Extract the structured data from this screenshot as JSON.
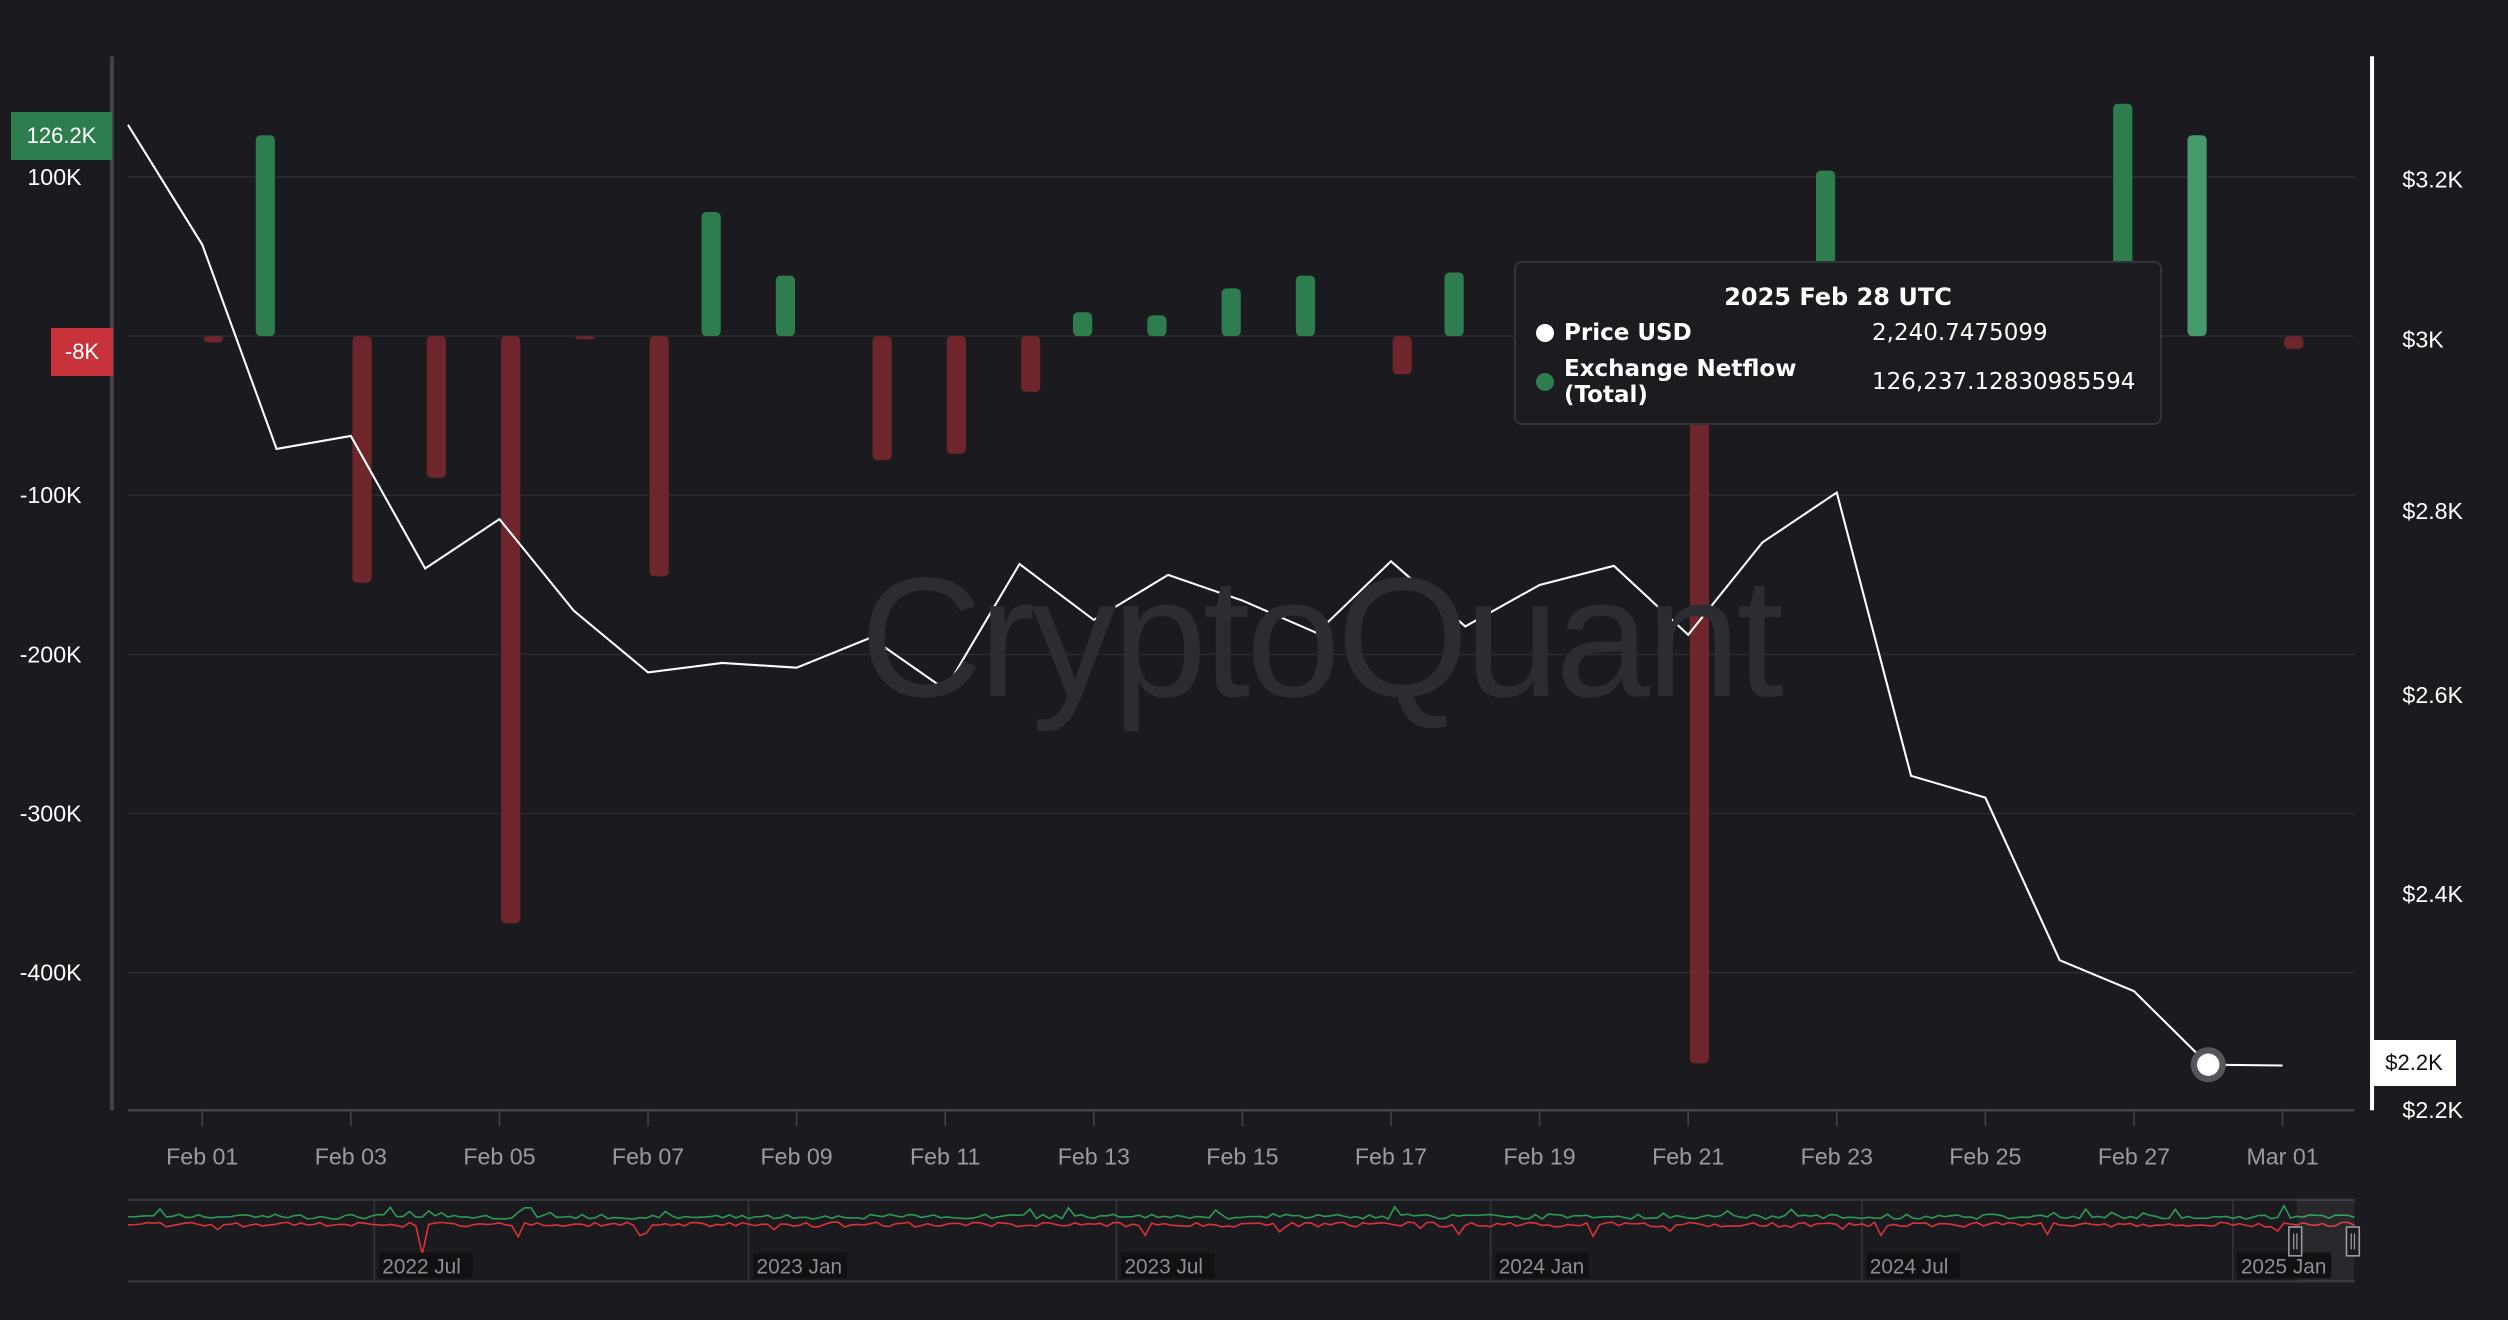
{
  "chart_data": {
    "type": "bar+line",
    "title": "",
    "watermark": "CryptoQuant",
    "xlabel": "",
    "ylabel_left": "Exchange Netflow (Total)",
    "ylabel_right": "Price USD",
    "categories": [
      "Jan 31",
      "Feb 01",
      "Feb 02",
      "Feb 03",
      "Feb 04",
      "Feb 05",
      "Feb 06",
      "Feb 07",
      "Feb 08",
      "Feb 09",
      "Feb 10",
      "Feb 11",
      "Feb 12",
      "Feb 13",
      "Feb 14",
      "Feb 15",
      "Feb 16",
      "Feb 17",
      "Feb 18",
      "Feb 19",
      "Feb 20",
      "Feb 21",
      "Feb 22",
      "Feb 23",
      "Feb 24",
      "Feb 25",
      "Feb 26",
      "Feb 27",
      "Feb 28",
      "Mar 01"
    ],
    "series": [
      {
        "name": "Price USD",
        "type": "line",
        "axis": "right",
        "color": "#ffffff",
        "values": [
          3271,
          3117,
          2871,
          2886,
          2736,
          2791,
          2690,
          2624,
          2634,
          2629,
          2661,
          2606,
          2741,
          2680,
          2729,
          2701,
          2666,
          2744,
          2673,
          2718,
          2739,
          2664,
          2765,
          2821,
          2517,
          2495,
          2337,
          2308,
          2240.75,
          2240
        ]
      },
      {
        "name": "Exchange Netflow (Total)",
        "type": "bar",
        "axis": "left",
        "positive_color": "#2e7d4f",
        "negative_color": "#6e262c",
        "highlight_color": "#449a6a",
        "values": [
          null,
          -4000,
          126200,
          -155000,
          -89000,
          -369000,
          -2000,
          -151000,
          78000,
          38000,
          -78000,
          -74000,
          -35000,
          15000,
          13000,
          30000,
          38000,
          -24000,
          40000,
          null,
          null,
          -457000,
          null,
          104000,
          null,
          null,
          null,
          146000,
          126237,
          -8000
        ]
      }
    ],
    "left_axis": {
      "ticks": [
        "100K",
        "-100K",
        "-200K",
        "-300K",
        "-400K"
      ],
      "tick_values": [
        100000,
        -100000,
        -200000,
        -300000,
        -400000
      ],
      "range": [
        -485000,
        135000
      ]
    },
    "right_axis": {
      "ticks": [
        "$3.2K",
        "$3K",
        "$2.8K",
        "$2.6K",
        "$2.4K",
        "$2.2K"
      ],
      "tick_values": [
        3200,
        3000,
        2800,
        2600,
        2400,
        2200
      ],
      "scale": "log"
    },
    "x_ticks": [
      "Feb 01",
      "Feb 03",
      "Feb 05",
      "Feb 07",
      "Feb 09",
      "Feb 11",
      "Feb 13",
      "Feb 15",
      "Feb 17",
      "Feb 19",
      "Feb 21",
      "Feb 23",
      "Feb 25",
      "Feb 27",
      "Mar 01"
    ],
    "grid": true,
    "legend": "tooltip"
  },
  "badges": {
    "left_high": {
      "text": "126.2K",
      "color": "#2e7d4f"
    },
    "left_low": {
      "text": "-8K",
      "color": "#c8323a"
    },
    "right_current": {
      "text": "$2.2K",
      "color": "#ffffff"
    }
  },
  "tooltip": {
    "title": "2025 Feb 28 UTC",
    "rows": [
      {
        "label": "Price USD",
        "value": "2,240.7475099",
        "dot_color": "#ffffff"
      },
      {
        "label": "Exchange Netflow (Total)",
        "value": "126,237.12830985594",
        "dot_color": "#2e7d4f"
      }
    ]
  },
  "navigator": {
    "labels": [
      "2022 Jul",
      "2023 Jan",
      "2023 Jul",
      "2024 Jan",
      "2024 Jul",
      "2025 Jan"
    ],
    "line_colors": [
      "#2e9a55",
      "#d8333a"
    ]
  }
}
